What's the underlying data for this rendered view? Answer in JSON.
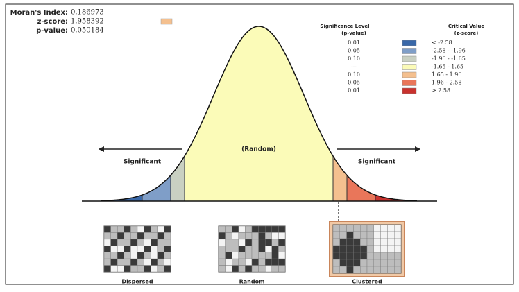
{
  "stats": {
    "morans_index": {
      "label": "Moran's Index:",
      "value": "0.186973"
    },
    "z_score": {
      "label": "z-score:",
      "value": "1.958392"
    },
    "p_value": {
      "label": "p-value:",
      "value": "0.050184"
    }
  },
  "legend": {
    "significance_header": [
      "Significance Level",
      "(p-value)"
    ],
    "critical_header": [
      "Critical Value",
      "(z-score)"
    ],
    "rows": [
      {
        "p_value": "0.01",
        "z_score": "< -2.58",
        "color": "#3a68a8"
      },
      {
        "p_value": "0.05",
        "z_score": "-2.58 - -1.96",
        "color": "#7f9ec8"
      },
      {
        "p_value": "0.10",
        "z_score": "-1.96 - -1.65",
        "color": "#c9d0c2"
      },
      {
        "p_value": "---",
        "z_score": "-1.65 - 1.65",
        "color": "#fbfbb8"
      },
      {
        "p_value": "0.10",
        "z_score": "1.65 - 1.96",
        "color": "#f4c08f"
      },
      {
        "p_value": "0.05",
        "z_score": "1.96 - 2.58",
        "color": "#e9765a"
      },
      {
        "p_value": "0.01",
        "z_score": "> 2.58",
        "color": "#c8322e"
      }
    ]
  },
  "curve": {
    "center_label": "(Random)",
    "tail_labels": [
      "Significant",
      "Significant"
    ]
  },
  "patterns": [
    "Dispersed",
    "Random",
    "Clustered"
  ]
}
